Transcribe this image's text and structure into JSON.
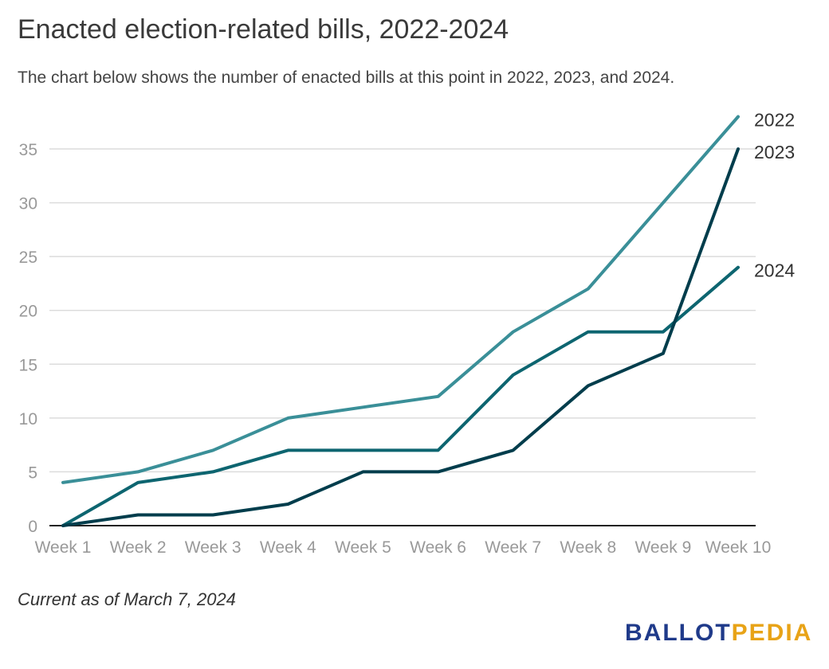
{
  "title": "Enacted election-related bills, 2022-2024",
  "subtitle": "The chart below shows the number of enacted bills at this point in 2022, 2023, and 2024.",
  "footnote": "Current as of March 7, 2024",
  "logo": {
    "part1": "BALLOT",
    "part2": "PEDIA",
    "color1": "#1f3a8a",
    "color2": "#e8a317"
  },
  "chart_data": {
    "type": "line",
    "title": "Enacted election-related bills, 2022-2024",
    "xlabel": "",
    "ylabel": "",
    "categories": [
      "Week 1",
      "Week 2",
      "Week 3",
      "Week 4",
      "Week 5",
      "Week 6",
      "Week 7",
      "Week 8",
      "Week 9",
      "Week 10"
    ],
    "ylim": [
      0,
      35
    ],
    "yticks": [
      0,
      5,
      10,
      15,
      20,
      25,
      30,
      35
    ],
    "grid": true,
    "legend": "end-of-line labels",
    "series": [
      {
        "name": "2022",
        "color": "#3a8f98",
        "values": [
          4,
          5,
          7,
          10,
          11,
          12,
          18,
          22,
          30,
          38
        ]
      },
      {
        "name": "2024",
        "color": "#0d6570",
        "values": [
          0,
          4,
          5,
          7,
          7,
          7,
          14,
          18,
          18,
          24
        ]
      },
      {
        "name": "2023",
        "color": "#003d4c",
        "values": [
          0,
          1,
          1,
          2,
          5,
          5,
          7,
          13,
          16,
          35
        ]
      }
    ]
  }
}
